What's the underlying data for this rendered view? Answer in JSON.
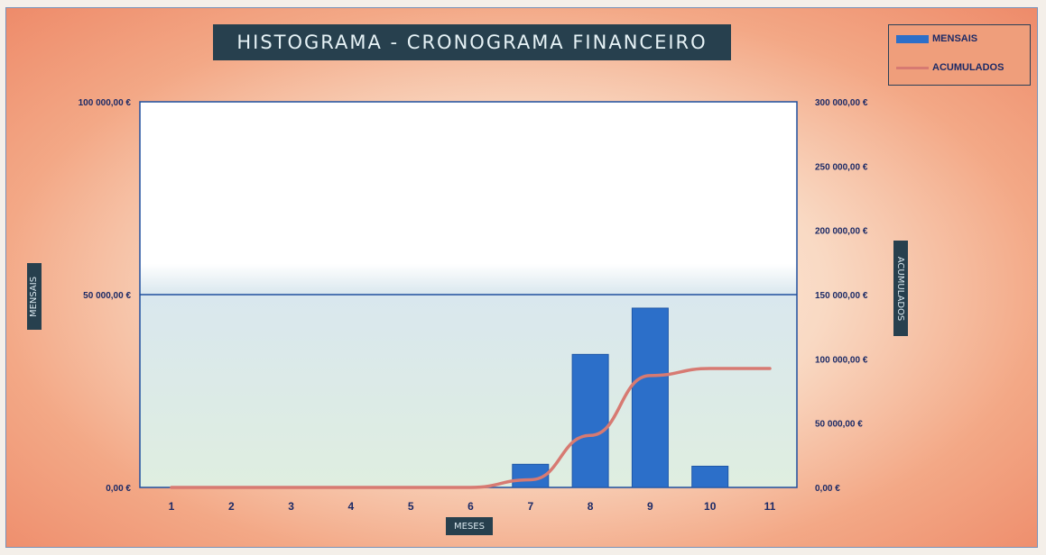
{
  "chart_data": {
    "type": "bar",
    "title": "HISTOGRAMA - CRONOGRAMA FINANCEIRO",
    "xlabel": "MESES",
    "ylabel": "MENSAIS",
    "y2label": "ACUMULADOS",
    "categories": [
      "1",
      "2",
      "3",
      "4",
      "5",
      "6",
      "7",
      "8",
      "9",
      "10",
      "11"
    ],
    "ylim": [
      0,
      100000
    ],
    "y2lim": [
      0,
      300000
    ],
    "yticks": [
      "0,00 €",
      "50 000,00 €",
      "100 000,00 €"
    ],
    "y2ticks": [
      "0,00 €",
      "50 000,00 €",
      "100 000,00 €",
      "150 000,00 €",
      "200 000,00 €",
      "250 000,00 €",
      "300 000,00 €"
    ],
    "series": [
      {
        "name": "MENSAIS",
        "axis": "left",
        "type": "bar",
        "color": "#2c6fc9",
        "values": [
          0,
          0,
          0,
          0,
          0,
          0,
          6000,
          34500,
          46500,
          5500,
          0
        ]
      },
      {
        "name": "ACUMULADOS",
        "axis": "right",
        "type": "line",
        "color": "#d77a72",
        "values": [
          0,
          0,
          0,
          0,
          0,
          0,
          6000,
          40500,
          87000,
          92500,
          92500
        ]
      }
    ],
    "grid": true,
    "legend": "top-right"
  }
}
